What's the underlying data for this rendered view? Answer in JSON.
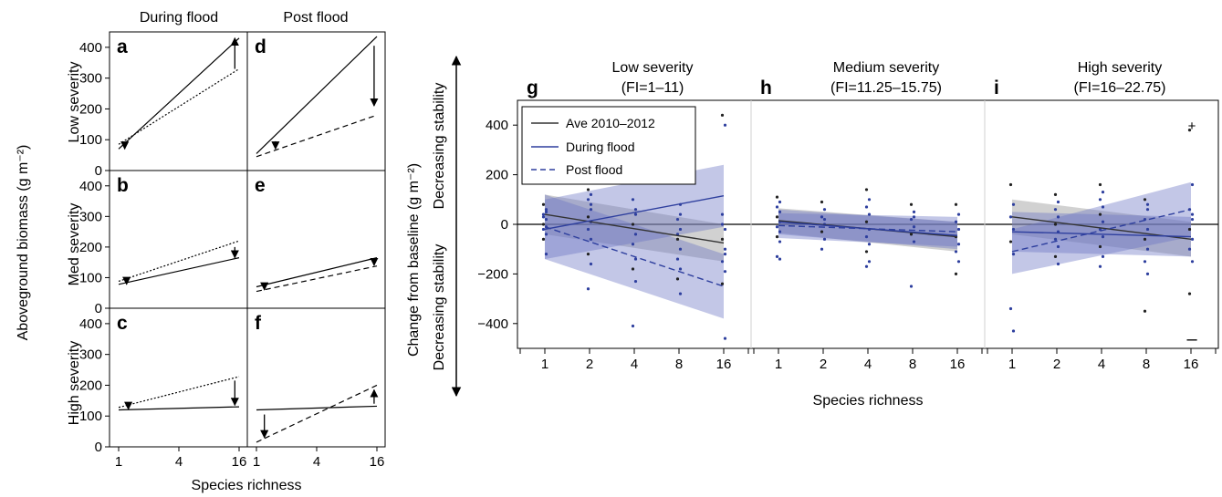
{
  "left_figure": {
    "col_titles": [
      "During flood",
      "Post flood"
    ],
    "row_titles": [
      "Low severity",
      "Med severity",
      "High severity"
    ],
    "ylabel": "Aboveground biomass (g m⁻²)",
    "xlabel": "Species richness",
    "yticks": [
      "0",
      "100",
      "200",
      "300",
      "400"
    ],
    "xticks": [
      "1",
      "4",
      "16"
    ]
  },
  "right_figure": {
    "ylabel": "Change from baseline (g m⁻²)",
    "xlabel": "Species richness",
    "side_up": "Decreasing stability",
    "side_down": "Decreasing stability",
    "yticks": [
      "−400",
      "−200",
      "0",
      "200",
      "400"
    ],
    "xticks": [
      "1",
      "2",
      "4",
      "8",
      "16"
    ],
    "plus": "+",
    "minus": "–",
    "legend": [
      "Ave 2010–2012",
      "During flood",
      "Post flood"
    ],
    "panels": [
      {
        "letter": "g",
        "title1": "Low severity",
        "title2": "(FI=1–11)"
      },
      {
        "letter": "h",
        "title1": "Medium severity",
        "title2": "(FI=11.25–15.75)"
      },
      {
        "letter": "i",
        "title1": "High severity",
        "title2": "(FI=16–22.75)"
      }
    ]
  },
  "colors": {
    "ave": "#333333",
    "flood": "#2e3f9e",
    "post": "#2e3f9e",
    "band_ave": "#9a9a9a",
    "band_flood": "#6a73c4"
  },
  "chart_data": [
    {
      "type": "line",
      "x_scale": "log2",
      "x_range": [
        1,
        16
      ],
      "y_range": [
        0,
        450
      ],
      "panels": [
        {
          "letter": "a",
          "col": "During flood",
          "row": "Low severity",
          "series": [
            {
              "style": "solid",
              "x": [
                1,
                16
              ],
              "y": [
                70,
                430
              ]
            },
            {
              "style": "dotted",
              "x": [
                1,
                16
              ],
              "y": [
                85,
                330
              ]
            }
          ],
          "arrows": [
            {
              "x": 1.15,
              "y0": 90,
              "y1": 70
            },
            {
              "x": 14.5,
              "y0": 330,
              "y1": 430
            }
          ]
        },
        {
          "letter": "d",
          "col": "Post flood",
          "row": "Low severity",
          "series": [
            {
              "style": "solid",
              "x": [
                1,
                16
              ],
              "y": [
                55,
                435
              ]
            },
            {
              "style": "dashed",
              "x": [
                1,
                16
              ],
              "y": [
                45,
                180
              ]
            }
          ],
          "arrows": [
            {
              "x": 1.55,
              "y0": 95,
              "y1": 70
            },
            {
              "x": 15,
              "y0": 405,
              "y1": 210
            }
          ]
        },
        {
          "letter": "b",
          "col": "During flood",
          "row": "Med severity",
          "series": [
            {
              "style": "solid",
              "x": [
                1,
                16
              ],
              "y": [
                78,
                165
              ]
            },
            {
              "style": "dotted",
              "x": [
                1,
                16
              ],
              "y": [
                88,
                220
              ]
            }
          ],
          "arrows": [
            {
              "x": 1.2,
              "y0": 92,
              "y1": 78
            },
            {
              "x": 14.5,
              "y0": 200,
              "y1": 165
            }
          ]
        },
        {
          "letter": "e",
          "col": "Post flood",
          "row": "Med severity",
          "series": [
            {
              "style": "solid",
              "x": [
                1,
                16
              ],
              "y": [
                70,
                165
              ]
            },
            {
              "style": "dashed",
              "x": [
                1,
                16
              ],
              "y": [
                55,
                138
              ]
            }
          ],
          "arrows": [
            {
              "x": 1.2,
              "y0": 80,
              "y1": 60
            },
            {
              "x": 15,
              "y0": 160,
              "y1": 140
            }
          ]
        },
        {
          "letter": "c",
          "col": "During flood",
          "row": "High severity",
          "series": [
            {
              "style": "solid",
              "x": [
                1,
                16
              ],
              "y": [
                120,
                130
              ]
            },
            {
              "style": "dotted",
              "x": [
                1,
                16
              ],
              "y": [
                128,
                228
              ]
            }
          ],
          "arrows": [
            {
              "x": 1.25,
              "y0": 138,
              "y1": 122
            },
            {
              "x": 14.5,
              "y0": 215,
              "y1": 135
            }
          ]
        },
        {
          "letter": "f",
          "col": "Post flood",
          "row": "High severity",
          "series": [
            {
              "style": "solid",
              "x": [
                1,
                16
              ],
              "y": [
                120,
                132
              ]
            },
            {
              "style": "dashed",
              "x": [
                1,
                16
              ],
              "y": [
                15,
                200
              ]
            }
          ],
          "arrows": [
            {
              "x": 1.2,
              "y0": 105,
              "y1": 30
            },
            {
              "x": 15,
              "y0": 140,
              "y1": 185
            }
          ]
        }
      ]
    },
    {
      "type": "scatter",
      "x_scale": "log2",
      "x_range": [
        1,
        16
      ],
      "y_range": [
        -500,
        500
      ],
      "panels": [
        {
          "letter": "g",
          "lines": [
            {
              "series": "Ave 2010–2012",
              "x": [
                1,
                16
              ],
              "y": [
                40,
                -75
              ],
              "band": [
                [
                  -40,
                  120
                ],
                [
                  -150,
                  0
                ]
              ]
            },
            {
              "series": "During flood",
              "x": [
                1,
                16
              ],
              "y": [
                -20,
                115
              ],
              "band": [
                [
                  -140,
                  100
                ],
                [
                  -10,
                  240
                ]
              ]
            },
            {
              "series": "Post flood",
              "x": [
                1,
                16
              ],
              "y": [
                -10,
                -250
              ],
              "band": [
                [
                  -140,
                  120
                ],
                [
                  -380,
                  -120
                ]
              ]
            }
          ],
          "points": [
            {
              "x": 1,
              "y": [
                80,
                60,
                40,
                20,
                0,
                -10,
                -20,
                -40,
                -60,
                -120,
                30,
                50
              ]
            },
            {
              "x": 2,
              "y": [
                140,
                120,
                100,
                60,
                30,
                10,
                -20,
                -60,
                -120,
                -160,
                -260,
                80
              ]
            },
            {
              "x": 4,
              "y": [
                280,
                170,
                100,
                40,
                0,
                -40,
                -80,
                -140,
                -180,
                -230,
                -410,
                60
              ]
            },
            {
              "x": 8,
              "y": [
                250,
                80,
                20,
                -20,
                -60,
                -100,
                -140,
                -180,
                -220,
                -280,
                -40,
                40
              ]
            },
            {
              "x": 16,
              "y": [
                440,
                400,
                40,
                -20,
                -60,
                -100,
                -150,
                -190,
                -240,
                -460,
                0,
                -120
              ]
            }
          ]
        },
        {
          "letter": "h",
          "lines": [
            {
              "series": "Ave 2010–2012",
              "x": [
                1,
                16
              ],
              "y": [
                15,
                -50
              ],
              "band": [
                [
                  -35,
                  65
                ],
                [
                  -110,
                  10
                ]
              ]
            },
            {
              "series": "During flood",
              "x": [
                1,
                16
              ],
              "y": [
                10,
                -45
              ],
              "band": [
                [
                  -40,
                  60
                ],
                [
                  -100,
                  10
                ]
              ]
            },
            {
              "series": "Post flood",
              "x": [
                1,
                16
              ],
              "y": [
                -5,
                -30
              ],
              "band": [
                [
                  -55,
                  45
                ],
                [
                  -90,
                  30
                ]
              ]
            }
          ],
          "points": [
            {
              "x": 1,
              "y": [
                110,
                90,
                70,
                50,
                30,
                10,
                -10,
                -30,
                -50,
                -70,
                -130,
                -140
              ]
            },
            {
              "x": 2,
              "y": [
                90,
                60,
                30,
                0,
                -30,
                -60,
                -100,
                20
              ]
            },
            {
              "x": 4,
              "y": [
                140,
                100,
                70,
                40,
                10,
                -20,
                -50,
                -80,
                -110,
                -150,
                -170
              ]
            },
            {
              "x": 8,
              "y": [
                80,
                50,
                20,
                -10,
                -40,
                -70,
                -250,
                30
              ]
            },
            {
              "x": 16,
              "y": [
                80,
                40,
                10,
                -20,
                -50,
                -80,
                -110,
                -150,
                -200
              ]
            }
          ]
        },
        {
          "letter": "i",
          "lines": [
            {
              "series": "Ave 2010–2012",
              "x": [
                1,
                16
              ],
              "y": [
                30,
                -60
              ],
              "band": [
                [
                  -40,
                  100
                ],
                [
                  -130,
                  10
                ]
              ]
            },
            {
              "series": "During flood",
              "x": [
                1,
                16
              ],
              "y": [
                -30,
                -50
              ],
              "band": [
                [
                  -110,
                  50
                ],
                [
                  -130,
                  30
                ]
              ]
            },
            {
              "series": "Post flood",
              "x": [
                1,
                16
              ],
              "y": [
                -110,
                60
              ],
              "band": [
                [
                  -200,
                  -20
                ],
                [
                  -50,
                  170
                ]
              ]
            }
          ],
          "points": [
            {
              "x": 1,
              "y": [
                160,
                80,
                30,
                -20,
                -70,
                -120,
                -340,
                -430
              ]
            },
            {
              "x": 2,
              "y": [
                120,
                90,
                60,
                30,
                0,
                -30,
                -60,
                -90,
                -130,
                -160
              ]
            },
            {
              "x": 4,
              "y": [
                160,
                130,
                100,
                70,
                40,
                10,
                -20,
                -50,
                -90,
                -130,
                -170
              ]
            },
            {
              "x": 8,
              "y": [
                100,
                60,
                20,
                -20,
                -60,
                -100,
                -150,
                -200,
                -350,
                80
              ]
            },
            {
              "x": 16,
              "y": [
                380,
                160,
                60,
                20,
                -20,
                -60,
                -100,
                -150,
                -280,
                40
              ]
            }
          ]
        }
      ]
    }
  ]
}
